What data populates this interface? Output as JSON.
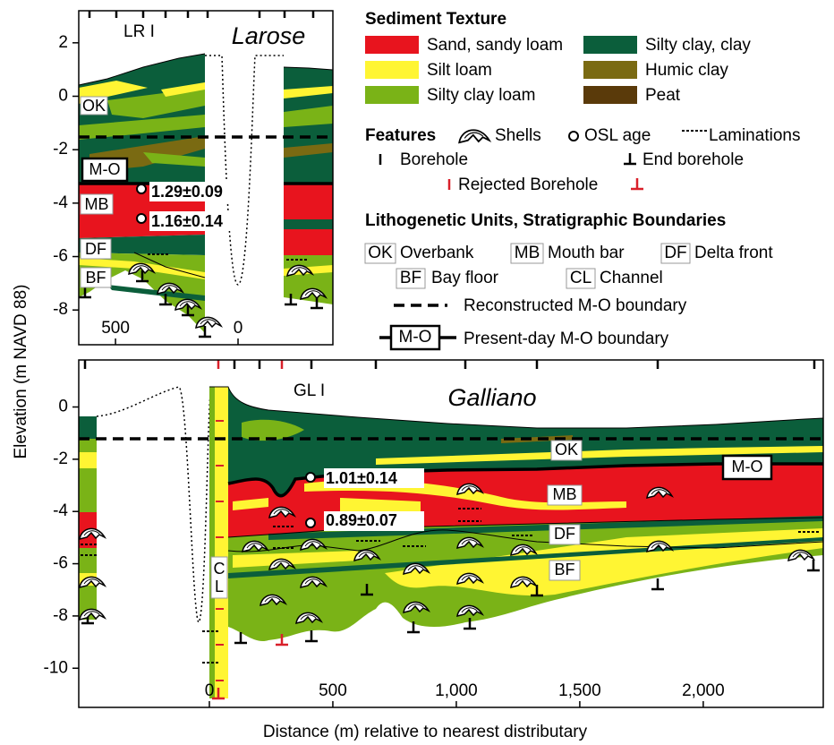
{
  "axes": {
    "ylabel": "Elevation (m NAVD 88)",
    "xlabel": "Distance (m) relative to nearest distributary"
  },
  "chart_data": [
    {
      "type": "cross-section",
      "title": "Larose",
      "section_label": "LR I",
      "units": [
        "OK",
        "M-O",
        "MB",
        "DF",
        "BF"
      ],
      "ages": [
        "1.29±0.09",
        "1.16±0.14"
      ],
      "xlim": [
        650,
        -387
      ],
      "xticks": [
        500,
        0
      ],
      "ylim": [
        -9.3,
        3.2
      ],
      "yticks": [
        2,
        0,
        -2,
        -4,
        -6,
        -8
      ]
    },
    {
      "type": "cross-section",
      "title": "Galliano",
      "section_label": "GL I",
      "units": [
        "OK",
        "M-O",
        "MB",
        "DF",
        "BF",
        "CL"
      ],
      "ages": [
        "1.01±0.14",
        "0.89±0.07"
      ],
      "xlim": [
        -529,
        2486
      ],
      "xticks": [
        0,
        500,
        {
          "value": 1000,
          "label": "1,000"
        },
        {
          "value": 1500,
          "label": "1,500"
        },
        {
          "value": 2000,
          "label": "2,000"
        }
      ],
      "ylim": [
        -11.5,
        1.8
      ],
      "yticks": [
        0,
        -2,
        -4,
        -6,
        -8,
        -10
      ]
    }
  ],
  "legend": {
    "sediment": {
      "title": "Sediment Texture",
      "items": [
        {
          "name": "Sand, sandy loam",
          "color": "#e8141e"
        },
        {
          "name": "Silt loam",
          "color": "#fff533"
        },
        {
          "name": "Silty clay loam",
          "color": "#7ab317"
        },
        {
          "name": "Silty clay, clay",
          "color": "#0b5e3b"
        },
        {
          "name": "Humic clay",
          "color": "#7a6a12"
        },
        {
          "name": "Peat",
          "color": "#5a3a0a"
        }
      ]
    },
    "features": {
      "title": "Features",
      "items": [
        "Shells",
        "OSL age",
        "Laminations",
        "Borehole",
        "End borehole",
        "Rejected Borehole"
      ]
    },
    "units": {
      "title": "Lithogenetic Units, Stratigraphic Boundaries",
      "items": [
        {
          "code": "OK",
          "name": "Overbank"
        },
        {
          "code": "MB",
          "name": "Mouth bar"
        },
        {
          "code": "DF",
          "name": "Delta front"
        },
        {
          "code": "BF",
          "name": "Bay floor"
        },
        {
          "code": "CL",
          "name": "Channel"
        }
      ],
      "boundaries": [
        "Reconstructed M-O boundary",
        "Present-day M-O boundary"
      ],
      "boundary_label": "M-O"
    }
  }
}
